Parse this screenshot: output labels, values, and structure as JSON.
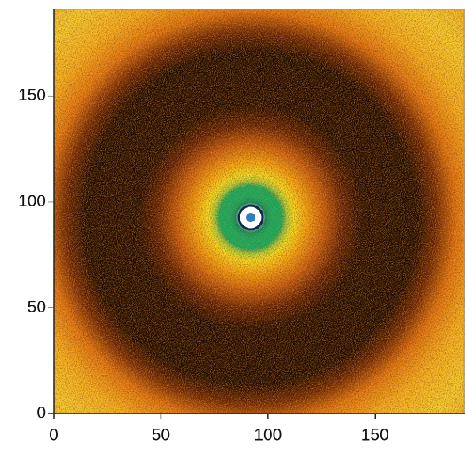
{
  "chart_data": {
    "type": "heatmap",
    "xlim": [
      0,
      192
    ],
    "ylim": [
      0,
      191
    ],
    "xticks": [
      0,
      50,
      100,
      150
    ],
    "yticks": [
      0,
      50,
      100,
      150
    ]
  }
}
